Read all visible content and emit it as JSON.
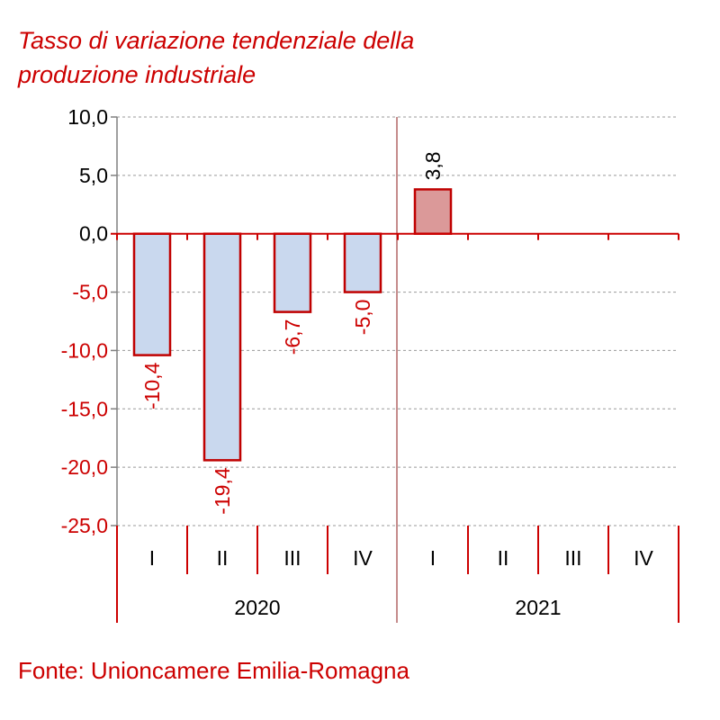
{
  "chart_data": {
    "type": "bar",
    "title_lines": [
      "Tasso di variazione tendenziale della",
      "produzione industriale"
    ],
    "ylim": [
      -25,
      10
    ],
    "yticks": [
      10,
      5,
      0,
      -5,
      -10,
      -15,
      -20,
      -25
    ],
    "ytick_labels": [
      "10,0",
      "5,0",
      "0,0",
      "-5,0",
      "-10,0",
      "-15,0",
      "-20,0",
      "-25,0"
    ],
    "years": [
      "2020",
      "2021"
    ],
    "categories": [
      "I",
      "II",
      "III",
      "IV",
      "I",
      "II",
      "III",
      "IV"
    ],
    "values": [
      -10.4,
      -19.4,
      -6.7,
      -5.0,
      3.8,
      null,
      null,
      null
    ],
    "data_labels": [
      "-10,4",
      "-19,4",
      "-6,7",
      "-5,0",
      "3,8",
      "",
      "",
      ""
    ],
    "colors": {
      "accent": "#cc0000",
      "negative_fill": "#c9d8ee",
      "positive_fill": "#db9999",
      "bar_stroke": "#c00000",
      "grid": "#999999",
      "label_positive": "#000000"
    },
    "grid": true
  },
  "source": "Fonte: Unioncamere Emilia-Romagna"
}
